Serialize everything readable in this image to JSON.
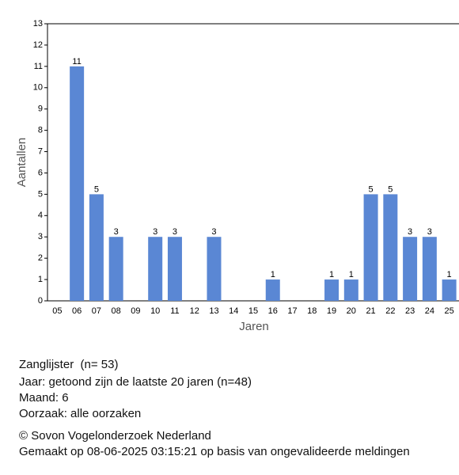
{
  "chart_data": {
    "type": "bar",
    "x_label": "Jaren",
    "y_label": "Aantallen",
    "categories": [
      "05",
      "06",
      "07",
      "08",
      "09",
      "10",
      "11",
      "12",
      "13",
      "14",
      "15",
      "16",
      "17",
      "18",
      "19",
      "20",
      "21",
      "22",
      "23",
      "24",
      "25"
    ],
    "values": [
      0,
      11,
      5,
      3,
      0,
      3,
      3,
      0,
      3,
      0,
      0,
      1,
      0,
      0,
      1,
      1,
      5,
      5,
      3,
      3,
      1
    ],
    "color": "#5a87d4",
    "ylim": [
      0,
      13
    ],
    "yticks": [
      0,
      1,
      2,
      3,
      4,
      5,
      6,
      7,
      8,
      9,
      10,
      11,
      12,
      13
    ],
    "grid": false
  },
  "notes": [
    "Zanglijster  (n= 53)",
    "Jaar: getoond zijn de laatste 20 jaren (n=48)",
    "Maand: 6",
    "Oorzaak: alle oorzaken"
  ],
  "footer": [
    "© Sovon Vogelonderzoek Nederland",
    "Gemaakt op 08-06-2025 03:15:21 op basis van ongevalideerde meldingen"
  ]
}
